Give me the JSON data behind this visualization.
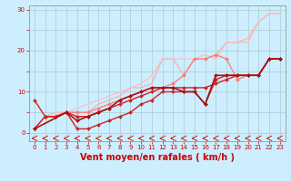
{
  "xlabel": "Vent moyen/en rafales ( km/h )",
  "bg_color": "#cceeff",
  "grid_color": "#aacccc",
  "xlim": [
    -0.5,
    23.5
  ],
  "ylim": [
    -2,
    31
  ],
  "xticks": [
    0,
    1,
    2,
    3,
    4,
    5,
    6,
    7,
    8,
    9,
    10,
    11,
    12,
    13,
    14,
    15,
    16,
    17,
    18,
    19,
    20,
    21,
    22,
    23
  ],
  "yticks": [
    0,
    5,
    10,
    15,
    20,
    25,
    30
  ],
  "series": [
    {
      "x": [
        1,
        2,
        3,
        4,
        5,
        6,
        7,
        8,
        9,
        10,
        11,
        12,
        13,
        14,
        15,
        16,
        17,
        18,
        19,
        20,
        21,
        22,
        23
      ],
      "y": [
        4,
        5,
        5,
        5,
        5,
        7,
        8,
        9,
        11,
        11,
        12,
        18,
        18,
        14,
        18,
        18,
        19,
        22,
        22,
        23,
        27,
        29,
        29
      ],
      "color": "#ffaaaa",
      "lw": 0.8,
      "marker": null,
      "ms": 0
    },
    {
      "x": [
        1,
        2,
        3,
        4,
        5,
        6,
        7,
        8,
        9,
        10,
        11,
        12,
        13,
        14,
        15,
        16,
        17,
        18,
        19,
        20,
        21,
        22,
        23
      ],
      "y": [
        4,
        5,
        5,
        6,
        7,
        8,
        9,
        10,
        11,
        12,
        14,
        18,
        18,
        18,
        18,
        19,
        18,
        22,
        22,
        22,
        27,
        29,
        29
      ],
      "color": "#ffbbbb",
      "lw": 0.8,
      "marker": null,
      "ms": 0
    },
    {
      "x": [
        0,
        1,
        2,
        3,
        4,
        5,
        6,
        7,
        8,
        9,
        10,
        11,
        12,
        13,
        14,
        15,
        16,
        17,
        18,
        19,
        20,
        21,
        22,
        23
      ],
      "y": [
        1,
        4,
        4,
        5,
        5,
        5,
        6,
        7,
        8,
        9,
        10,
        11,
        11,
        12,
        14,
        18,
        18,
        19,
        18,
        13,
        14,
        14,
        18,
        18
      ],
      "color": "#ff7777",
      "lw": 0.9,
      "marker": "D",
      "ms": 2.0
    },
    {
      "x": [
        0,
        1,
        2,
        3,
        4,
        5,
        6,
        7,
        8,
        9,
        10,
        11,
        12,
        13,
        14,
        15,
        16,
        17,
        18,
        19,
        20,
        21,
        22,
        23
      ],
      "y": [
        8,
        4,
        4,
        5,
        1,
        1,
        2,
        3,
        4,
        5,
        7,
        8,
        10,
        10,
        10,
        10,
        7,
        13,
        14,
        14,
        14,
        14,
        18,
        18
      ],
      "color": "#cc2222",
      "lw": 1.0,
      "marker": "D",
      "ms": 2.0
    },
    {
      "x": [
        0,
        1,
        2,
        3,
        4,
        5,
        6,
        7,
        8,
        9,
        10,
        11,
        12,
        13,
        14,
        15,
        16,
        17,
        18,
        19,
        20,
        21,
        22,
        23
      ],
      "y": [
        1,
        4,
        4,
        5,
        4,
        4,
        5,
        6,
        7,
        8,
        9,
        10,
        11,
        11,
        11,
        11,
        11,
        12,
        13,
        14,
        14,
        14,
        18,
        18
      ],
      "color": "#cc2222",
      "lw": 1.0,
      "marker": "D",
      "ms": 2.0
    },
    {
      "x": [
        0,
        3,
        4,
        5,
        6,
        7,
        8,
        9,
        10,
        11,
        12,
        13,
        14,
        15,
        16,
        17,
        18,
        19,
        20,
        21,
        22,
        23
      ],
      "y": [
        1,
        5,
        3,
        4,
        5,
        6,
        8,
        9,
        10,
        11,
        11,
        11,
        10,
        10,
        7,
        14,
        14,
        14,
        14,
        14,
        18,
        18
      ],
      "color": "#aa1111",
      "lw": 1.2,
      "marker": "D",
      "ms": 2.0
    }
  ],
  "xlabel_color": "#cc0000",
  "xlabel_fontsize": 7,
  "tick_fontsize": 5,
  "tick_color": "#cc0000",
  "ylabel_ticks": [
    "0",
    "",
    "10",
    "",
    "20",
    "",
    "30"
  ],
  "arrow_color": "#cc0000"
}
